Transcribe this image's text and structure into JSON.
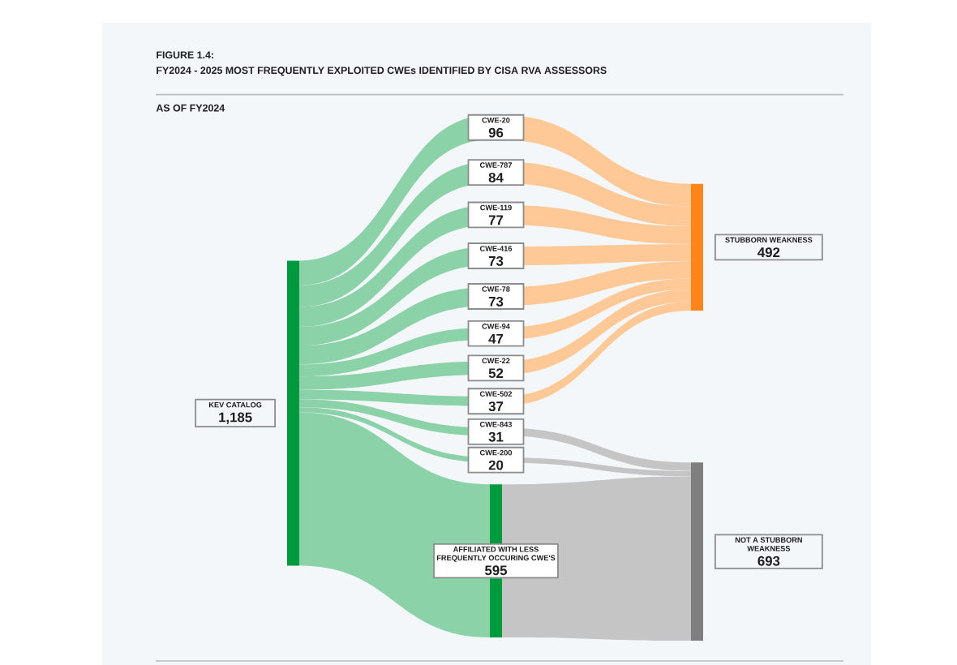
{
  "chart_data": {
    "type": "other",
    "title": "FIGURE 1.4:",
    "subtitle": "FY2024 - 2025 MOST FREQUENTLY EXPLOITED CWEs IDENTIFIED BY CISA RVA ASSESSORS",
    "annotations": [
      "AS OF FY2024"
    ],
    "categories": [
      "KEV CATALOG",
      "CWE-20",
      "CWE-787",
      "CWE-119",
      "CWE-416",
      "CWE-78",
      "CWE-94",
      "CWE-22",
      "CWE-502",
      "CWE-843",
      "CWE-200",
      "AFFILIATED WITH LESS FREQUENTLY OCCURING CWE'S",
      "STUBBORN WEAKNESS",
      "NOT A STUBBORN WEAKNESS"
    ],
    "values": [
      1185,
      null,
      null,
      null,
      null,
      null,
      null,
      null,
      null,
      null,
      null,
      null,
      492,
      693
    ],
    "value_labels": [
      "1,185",
      null,
      null,
      null,
      null,
      null,
      null,
      null,
      null,
      null,
      null,
      null,
      "492",
      "693"
    ],
    "colors": [
      "#009a3e",
      null,
      null,
      null,
      null,
      null,
      null,
      null,
      null,
      null,
      null,
      "#009a3e",
      "#ff8419",
      "#7f7f7f"
    ],
    "series": [
      {
        "values": [
          null,
          96,
          84,
          77,
          73,
          73,
          47,
          52,
          37,
          null,
          null,
          null,
          null,
          null
        ],
        "value_labels": [
          null,
          "96",
          "84",
          "77",
          "73",
          "73",
          "47",
          "52",
          "37",
          null,
          null,
          null,
          null,
          null
        ]
      },
      {
        "values": [
          null,
          null,
          null,
          null,
          null,
          null,
          null,
          null,
          null,
          31,
          20,
          595,
          null,
          null
        ],
        "value_labels": [
          null,
          null,
          null,
          null,
          null,
          null,
          null,
          null,
          null,
          "31",
          "20",
          "595",
          null,
          null
        ]
      }
    ]
  }
}
